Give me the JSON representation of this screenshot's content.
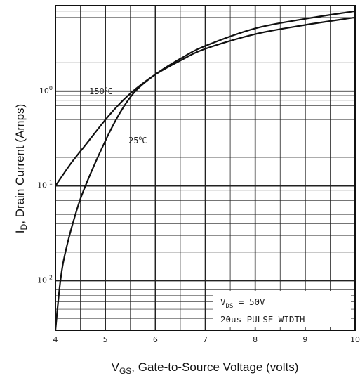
{
  "chart_data": {
    "type": "line",
    "xlabel": "V",
    "xlabel_sub": "GS",
    "xlabel_rest": ", Gate-to-Source Voltage (volts)",
    "ylabel": "I",
    "ylabel_sub": "D",
    "ylabel_rest": ", Drain Current (Amps)",
    "xlim": [
      4,
      10
    ],
    "ylim": [
      0.003,
      8
    ],
    "yscale": "log",
    "grid": true,
    "x_ticks": [
      "4",
      "5",
      "6",
      "7",
      "8",
      "9",
      "10"
    ],
    "y_ticks": [
      {
        "base": "10",
        "exp": "0"
      },
      {
        "base": "10",
        "exp": "-1"
      },
      {
        "base": "10",
        "exp": "-2"
      }
    ],
    "series": [
      {
        "name": "150°C",
        "label_base": "150",
        "label_unit": "C",
        "x": [
          4.0,
          4.3,
          4.6,
          5.0,
          5.3,
          5.6,
          6.0,
          6.5,
          7.0,
          8.0,
          9.0,
          10.0
        ],
        "y": [
          0.1,
          0.17,
          0.27,
          0.5,
          0.75,
          1.05,
          1.5,
          2.1,
          2.8,
          4.0,
          5.0,
          6.0
        ]
      },
      {
        "name": "25°C",
        "label_base": "25",
        "label_unit": "C",
        "x": [
          4.0,
          4.1,
          4.2,
          4.4,
          4.6,
          5.0,
          5.3,
          5.6,
          6.0,
          6.5,
          7.0,
          8.0,
          9.0,
          10.0
        ],
        "y": [
          0.003,
          0.01,
          0.02,
          0.05,
          0.1,
          0.3,
          0.6,
          1.0,
          1.5,
          2.2,
          3.0,
          4.6,
          5.8,
          7.0
        ]
      }
    ],
    "notes": [
      {
        "main": "V",
        "sub": "DS",
        "rest": " = 50V"
      },
      {
        "main": "20us PULSE WIDTH"
      }
    ]
  }
}
